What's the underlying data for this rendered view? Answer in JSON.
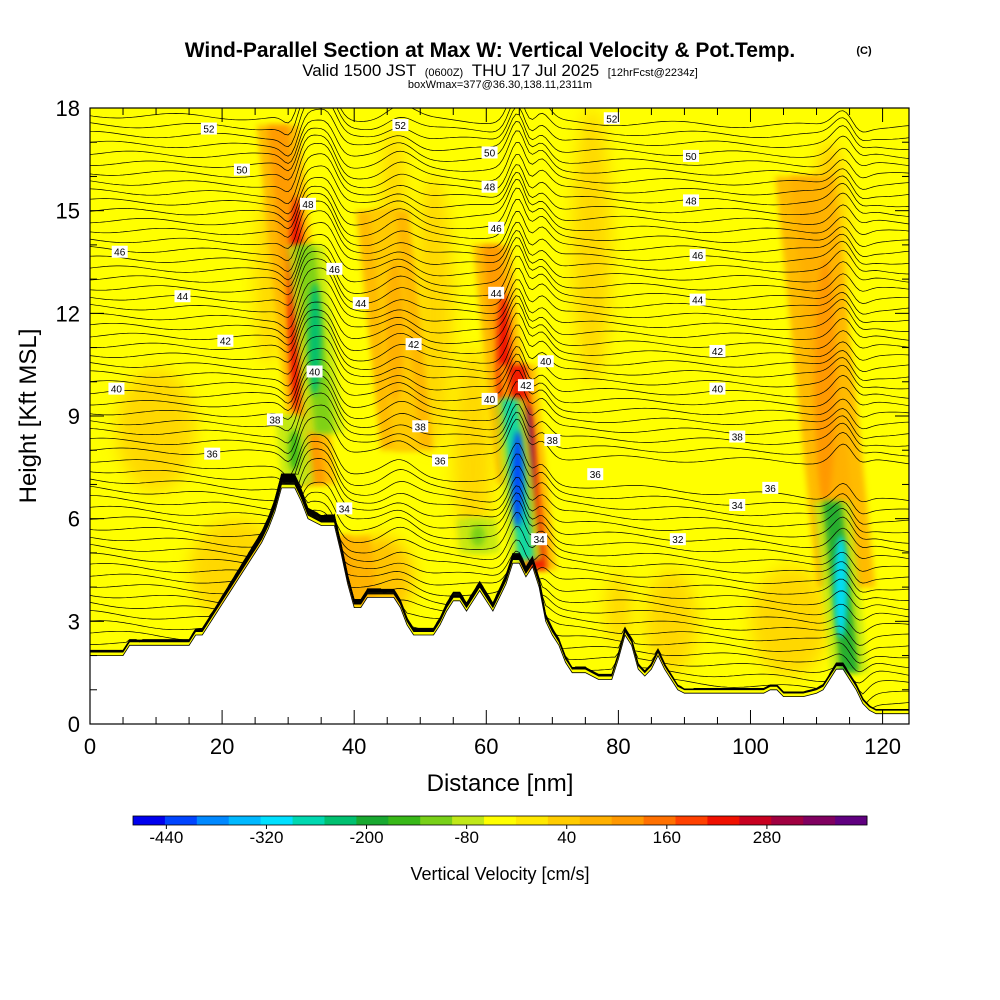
{
  "chart_data": {
    "type": "heatmap",
    "title": "Wind-Parallel Section at Max W: Vertical Velocity & Pot.Temp.",
    "title_mark": "(C)",
    "subtitle": {
      "valid": "Valid 1500 JST",
      "utc": "(0600Z)",
      "date": "THU 17 Jul 2025",
      "forecast": "[12hrFcst@2234z]"
    },
    "box_info": "boxWmax=377@36.30,138.11,2311m",
    "xlabel": "Distance [nm]",
    "ylabel": "Height [Kft MSL]",
    "xlim": [
      0,
      124
    ],
    "ylim": [
      0,
      18
    ],
    "x_ticks": [
      "0",
      "20",
      "40",
      "60",
      "80",
      "100",
      "120"
    ],
    "x_tick_values": [
      0,
      20,
      40,
      60,
      80,
      100,
      120
    ],
    "y_ticks": [
      "0",
      "3",
      "6",
      "9",
      "12",
      "15",
      "18"
    ],
    "y_tick_values": [
      0,
      3,
      6,
      9,
      12,
      15,
      18
    ],
    "colorbar": {
      "title": "Vertical Velocity [cm/s]",
      "min": -480,
      "max": 400,
      "tick_labels": [
        "-440",
        "-320",
        "-200",
        "-80",
        "40",
        "160",
        "280"
      ],
      "tick_values": [
        -440,
        -320,
        -200,
        -80,
        40,
        160,
        280
      ],
      "colors": [
        "#0000ee",
        "#0044ff",
        "#0088ff",
        "#00b8ff",
        "#00e0ff",
        "#00d8b0",
        "#00c070",
        "#18a830",
        "#38b818",
        "#78d018",
        "#c0e818",
        "#ffff00",
        "#ffe800",
        "#ffcc00",
        "#ffb000",
        "#ff9800",
        "#ff7000",
        "#ff4000",
        "#f01000",
        "#c80020",
        "#a00040",
        "#800060",
        "#600080"
      ]
    },
    "terrain": [
      [
        0,
        2.0
      ],
      [
        5,
        2.0
      ],
      [
        6,
        2.3
      ],
      [
        12,
        2.3
      ],
      [
        15,
        2.3
      ],
      [
        16,
        2.6
      ],
      [
        17,
        2.6
      ],
      [
        18,
        2.9
      ],
      [
        19,
        3.2
      ],
      [
        20,
        3.5
      ],
      [
        21,
        3.8
      ],
      [
        22,
        4.1
      ],
      [
        23,
        4.4
      ],
      [
        24,
        4.7
      ],
      [
        25,
        5.0
      ],
      [
        26,
        5.3
      ],
      [
        27,
        5.7
      ],
      [
        28,
        6.2
      ],
      [
        29,
        6.9
      ],
      [
        30,
        6.9
      ],
      [
        31,
        6.9
      ],
      [
        32,
        6.5
      ],
      [
        33,
        6.0
      ],
      [
        35,
        5.8
      ],
      [
        37,
        5.8
      ],
      [
        38,
        5.0
      ],
      [
        39,
        4.1
      ],
      [
        40,
        3.4
      ],
      [
        41,
        3.4
      ],
      [
        42,
        3.7
      ],
      [
        46,
        3.7
      ],
      [
        47,
        3.4
      ],
      [
        48,
        2.9
      ],
      [
        49,
        2.6
      ],
      [
        52,
        2.6
      ],
      [
        53,
        2.9
      ],
      [
        54,
        3.3
      ],
      [
        55,
        3.6
      ],
      [
        56,
        3.6
      ],
      [
        57,
        3.3
      ],
      [
        58,
        3.6
      ],
      [
        59,
        3.9
      ],
      [
        60,
        3.6
      ],
      [
        61,
        3.3
      ],
      [
        62,
        3.7
      ],
      [
        63,
        4.1
      ],
      [
        64,
        4.7
      ],
      [
        65,
        4.7
      ],
      [
        66,
        4.3
      ],
      [
        67,
        4.6
      ],
      [
        68,
        4.0
      ],
      [
        69,
        3.0
      ],
      [
        70,
        2.6
      ],
      [
        71,
        2.3
      ],
      [
        72,
        1.8
      ],
      [
        73,
        1.5
      ],
      [
        75,
        1.5
      ],
      [
        77,
        1.3
      ],
      [
        79,
        1.3
      ],
      [
        80,
        1.9
      ],
      [
        81,
        2.6
      ],
      [
        82,
        2.3
      ],
      [
        83,
        1.6
      ],
      [
        84,
        1.4
      ],
      [
        85,
        1.6
      ],
      [
        86,
        2.0
      ],
      [
        87,
        1.6
      ],
      [
        88,
        1.3
      ],
      [
        89,
        1.0
      ],
      [
        90,
        0.9
      ],
      [
        92,
        0.9
      ],
      [
        95,
        0.9
      ],
      [
        98,
        0.9
      ],
      [
        100,
        0.9
      ],
      [
        102,
        0.9
      ],
      [
        103,
        1.0
      ],
      [
        104,
        1.0
      ],
      [
        105,
        0.8
      ],
      [
        108,
        0.8
      ],
      [
        110,
        0.9
      ],
      [
        111,
        1.0
      ],
      [
        112,
        1.3
      ],
      [
        113,
        1.6
      ],
      [
        114,
        1.6
      ],
      [
        115,
        1.3
      ],
      [
        116,
        1.0
      ],
      [
        117,
        0.6
      ],
      [
        118,
        0.4
      ],
      [
        119,
        0.3
      ],
      [
        121,
        0.3
      ],
      [
        124,
        0.3
      ]
    ],
    "updrafts": [
      {
        "x": 34,
        "y_bottom": 7.0,
        "y_top": 17.5,
        "w": 1.6,
        "peak": 220
      },
      {
        "x": 37.5,
        "y_bottom": 3.5,
        "y_top": 5.5,
        "w": 3,
        "peak": 120
      },
      {
        "x": 48,
        "y_bottom": 8,
        "y_top": 15,
        "w": 2,
        "peak": 90
      },
      {
        "x": 64.5,
        "y_bottom": 7,
        "y_top": 14,
        "w": 1.4,
        "peak": 220
      },
      {
        "x": 67.8,
        "y_bottom": 4.5,
        "y_top": 10.5,
        "w": 1.4,
        "peak": 360
      },
      {
        "x": 114.5,
        "y_bottom": 4,
        "y_top": 16,
        "w": 2.2,
        "peak": 120
      }
    ],
    "downdrafts": [
      {
        "x": 31.5,
        "y_bottom": 7,
        "y_top": 9,
        "w": 1.2,
        "peak": -160
      },
      {
        "x": 35.5,
        "y_bottom": 8.5,
        "y_top": 14,
        "w": 1.4,
        "peak": -220
      },
      {
        "x": 59,
        "y_bottom": 5,
        "y_top": 6,
        "w": 1.5,
        "peak": -100
      },
      {
        "x": 66,
        "y_bottom": 4.8,
        "y_top": 9.5,
        "w": 1.2,
        "peak": -440
      },
      {
        "x": 115,
        "y_bottom": 1.5,
        "y_top": 6.5,
        "w": 1.4,
        "peak": -320
      }
    ],
    "theta_contours": [
      {
        "label": "32",
        "base_y": 4.8
      },
      {
        "label": "34",
        "base_y": 5.6
      },
      {
        "label": "36",
        "base_y": 7.9
      },
      {
        "label": "38",
        "base_y": 9.3
      },
      {
        "label": "40",
        "base_y": 10.0
      },
      {
        "label": "42",
        "base_y": 11.3
      },
      {
        "label": "44",
        "base_y": 12.6
      },
      {
        "label": "46",
        "base_y": 13.8
      },
      {
        "label": "48",
        "base_y": 15.3
      },
      {
        "label": "50",
        "base_y": 16.5
      },
      {
        "label": "52",
        "base_y": 17.7
      }
    ],
    "contour_labels": [
      {
        "text": "52",
        "x": 18,
        "y": 17.4
      },
      {
        "text": "52",
        "x": 47,
        "y": 17.5
      },
      {
        "text": "52",
        "x": 79,
        "y": 17.7
      },
      {
        "text": "50",
        "x": 23,
        "y": 16.2
      },
      {
        "text": "50",
        "x": 60.5,
        "y": 16.7
      },
      {
        "text": "50",
        "x": 91,
        "y": 16.6
      },
      {
        "text": "48",
        "x": 33,
        "y": 15.2
      },
      {
        "text": "48",
        "x": 60.5,
        "y": 15.7
      },
      {
        "text": "48",
        "x": 91,
        "y": 15.3
      },
      {
        "text": "46",
        "x": 4.5,
        "y": 13.8
      },
      {
        "text": "46",
        "x": 37,
        "y": 13.3
      },
      {
        "text": "46",
        "x": 61.5,
        "y": 14.5
      },
      {
        "text": "46",
        "x": 92,
        "y": 13.7
      },
      {
        "text": "44",
        "x": 14,
        "y": 12.5
      },
      {
        "text": "44",
        "x": 41,
        "y": 12.3
      },
      {
        "text": "44",
        "x": 61.5,
        "y": 12.6
      },
      {
        "text": "44",
        "x": 92,
        "y": 12.4
      },
      {
        "text": "42",
        "x": 20.5,
        "y": 11.2
      },
      {
        "text": "42",
        "x": 49,
        "y": 11.1
      },
      {
        "text": "42",
        "x": 66,
        "y": 9.9
      },
      {
        "text": "42",
        "x": 95,
        "y": 10.9
      },
      {
        "text": "40",
        "x": 4,
        "y": 9.8
      },
      {
        "text": "40",
        "x": 34,
        "y": 10.3
      },
      {
        "text": "40",
        "x": 60.5,
        "y": 9.5
      },
      {
        "text": "40",
        "x": 69,
        "y": 10.6
      },
      {
        "text": "40",
        "x": 95,
        "y": 9.8
      },
      {
        "text": "38",
        "x": 28,
        "y": 8.9
      },
      {
        "text": "38",
        "x": 50,
        "y": 8.7
      },
      {
        "text": "38",
        "x": 70,
        "y": 8.3
      },
      {
        "text": "38",
        "x": 98,
        "y": 8.4
      },
      {
        "text": "36",
        "x": 18.5,
        "y": 7.9
      },
      {
        "text": "36",
        "x": 53,
        "y": 7.7
      },
      {
        "text": "36",
        "x": 76.5,
        "y": 7.3
      },
      {
        "text": "36",
        "x": 103,
        "y": 6.9
      },
      {
        "text": "34",
        "x": 38.5,
        "y": 6.3
      },
      {
        "text": "34",
        "x": 68,
        "y": 5.4
      },
      {
        "text": "34",
        "x": 98,
        "y": 6.4
      },
      {
        "text": "32",
        "x": 89,
        "y": 5.4
      }
    ]
  }
}
